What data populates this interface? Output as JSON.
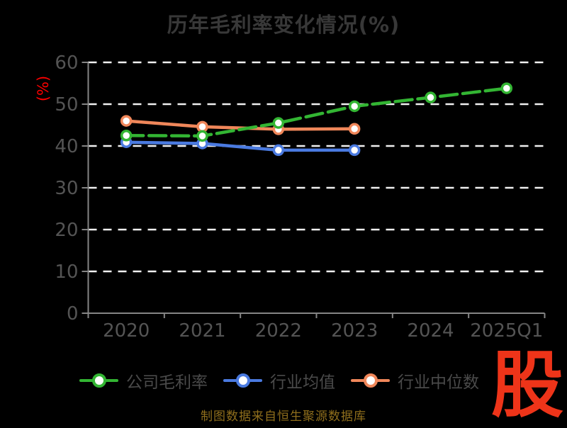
{
  "chart_data": {
    "type": "line",
    "title": "历年毛利率变化情况(%)",
    "ylabel": "(%)",
    "categories": [
      "2020",
      "2021",
      "2022",
      "2023",
      "2024",
      "2025Q1"
    ],
    "ylim": [
      0,
      60
    ],
    "yticks": [
      0,
      10,
      20,
      30,
      40,
      50,
      60
    ],
    "grid": "horizontal-dashed",
    "legend_position": "bottom",
    "series": [
      {
        "name": "公司毛利率",
        "color": "#33b533",
        "line_style": "dashed",
        "marker": "circle-white-fill",
        "values": [
          42.5,
          42.4,
          45.5,
          49.5,
          51.6,
          53.8
        ]
      },
      {
        "name": "行业均值",
        "color": "#4a7ae0",
        "line_style": "solid",
        "marker": "circle-white-fill",
        "values": [
          40.9,
          40.6,
          39.0,
          39.0,
          null,
          null
        ]
      },
      {
        "name": "行业中位数",
        "color": "#f0875a",
        "line_style": "solid",
        "marker": "circle-white-fill",
        "values": [
          46.0,
          44.6,
          44.0,
          44.1,
          null,
          null
        ]
      }
    ]
  },
  "colors": {
    "background": "#000000",
    "title_text": "#383838",
    "axis_line": "#858585",
    "tick_label": "#545454",
    "gridline": "#f0f0f0",
    "ylabel_text": "#ff0000",
    "legend_text": "#4a4a4a",
    "footer_text": "#8f6e1c",
    "logo_text": "#ee3419",
    "marker_fill": "#ffffff"
  },
  "footer": {
    "source_note": "制图数据来自恒生聚源数据库",
    "logo_text": "股"
  }
}
